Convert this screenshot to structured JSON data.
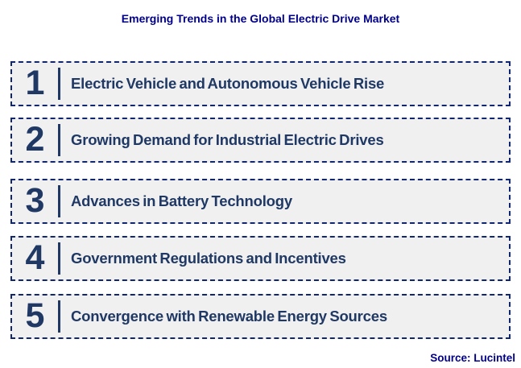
{
  "title": "Emerging Trends in the Global Electric Drive Market",
  "source": "Source: Lucintel",
  "trends": [
    {
      "number": "1",
      "label": "Electric Vehicle and Autonomous Vehicle Rise"
    },
    {
      "number": "2",
      "label": "Growing Demand for Industrial Electric Drives"
    },
    {
      "number": "3",
      "label": "Advances in Battery Technology"
    },
    {
      "number": "4",
      "label": "Government Regulations and Incentives"
    },
    {
      "number": "5",
      "label": "Convergence with Renewable Energy Sources"
    }
  ],
  "colors": {
    "title": "#00008B",
    "number": "#1F3864",
    "label": "#1F3864",
    "border": "#102770",
    "box_bg": "#F0F0F0"
  }
}
